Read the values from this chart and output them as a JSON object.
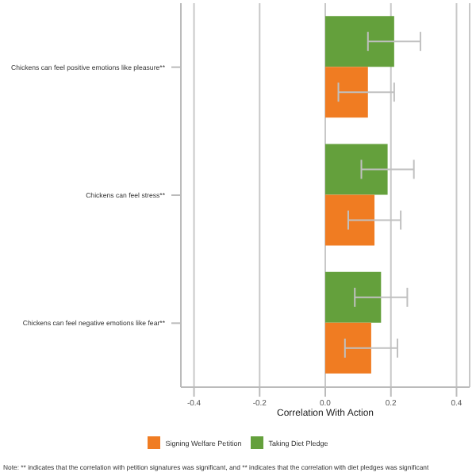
{
  "chart_data": {
    "type": "bar",
    "orientation": "horizontal",
    "xlabel": "Correlation With Action",
    "categories": [
      "Chickens can feel positive emotions like pleasure**",
      "Chickens can feel stress**",
      "Chickens can feel negative emotions like fear**"
    ],
    "series": [
      {
        "name": "Signing Welfare Petition",
        "color": "#f07c22",
        "values": [
          0.13,
          0.15,
          0.14
        ],
        "errors": [
          [
            0.04,
            0.21
          ],
          [
            0.07,
            0.23
          ],
          [
            0.06,
            0.22
          ]
        ]
      },
      {
        "name": "Taking Diet Pledge",
        "color": "#64a03c",
        "values": [
          0.21,
          0.19,
          0.17
        ],
        "errors": [
          [
            0.13,
            0.29
          ],
          [
            0.11,
            0.27
          ],
          [
            0.09,
            0.25
          ]
        ]
      }
    ],
    "xlim": [
      -0.44,
      0.44
    ],
    "xticks": [
      {
        "value": -0.4,
        "label": "-0.4"
      },
      {
        "value": -0.2,
        "label": "-0.2"
      },
      {
        "value": 0,
        "label": "0.0"
      },
      {
        "value": 0.2,
        "label": "0.2"
      },
      {
        "value": 0.4,
        "label": "0.4"
      }
    ],
    "grid": "x",
    "legend": "bottom",
    "annotations": [
      "Note: ** indicates that the correlation with petition signatures was significant, and ** indicates that the correlation with diet pledges was significant"
    ]
  }
}
